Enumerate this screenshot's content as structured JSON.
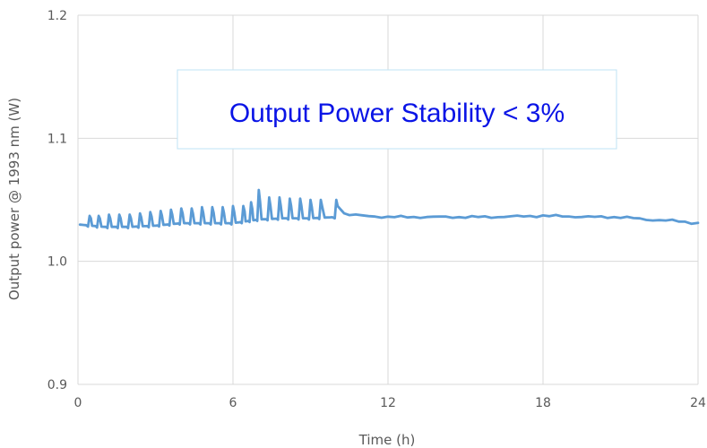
{
  "chart_data": {
    "type": "line",
    "title": "",
    "xlabel": "Time (h)",
    "ylabel": "Output power @ 1993 nm (W)",
    "xlim": [
      0,
      24
    ],
    "ylim": [
      0.9,
      1.2
    ],
    "x_ticks": [
      "0",
      "6",
      "12",
      "18",
      "24"
    ],
    "y_ticks": [
      "0.9",
      "1.0",
      "1.1",
      "1.2"
    ],
    "grid": true,
    "legend": "none",
    "annotation": "Output Power Stability < 3%",
    "series": [
      {
        "color": "#5b9bd5",
        "baseline": [
          [
            0.0,
            1.034
          ],
          [
            1.0,
            1.032
          ],
          [
            2.0,
            1.032
          ],
          [
            3.0,
            1.033
          ],
          [
            4.0,
            1.035
          ],
          [
            5.0,
            1.035
          ],
          [
            6.0,
            1.035
          ],
          [
            7.0,
            1.038
          ],
          [
            8.0,
            1.039
          ],
          [
            9.0,
            1.039
          ],
          [
            10.0,
            1.04
          ],
          [
            10.5,
            1.038
          ],
          [
            11.0,
            1.037
          ],
          [
            12.0,
            1.036
          ],
          [
            14.0,
            1.036
          ],
          [
            16.0,
            1.036
          ],
          [
            18.0,
            1.037
          ],
          [
            20.0,
            1.036
          ],
          [
            21.0,
            1.036
          ],
          [
            22.0,
            1.034
          ],
          [
            23.0,
            1.033
          ],
          [
            24.0,
            1.031
          ]
        ],
        "oscillation_peaks": [
          [
            0.45,
            1.037
          ],
          [
            0.8,
            1.037
          ],
          [
            1.2,
            1.038
          ],
          [
            1.6,
            1.038
          ],
          [
            2.0,
            1.038
          ],
          [
            2.4,
            1.039
          ],
          [
            2.8,
            1.04
          ],
          [
            3.2,
            1.041
          ],
          [
            3.6,
            1.042
          ],
          [
            4.0,
            1.043
          ],
          [
            4.4,
            1.043
          ],
          [
            4.8,
            1.044
          ],
          [
            5.2,
            1.044
          ],
          [
            5.6,
            1.044
          ],
          [
            6.0,
            1.045
          ],
          [
            6.4,
            1.045
          ],
          [
            6.7,
            1.048
          ],
          [
            7.0,
            1.058
          ],
          [
            7.4,
            1.052
          ],
          [
            7.8,
            1.052
          ],
          [
            8.2,
            1.051
          ],
          [
            8.6,
            1.051
          ],
          [
            9.0,
            1.05
          ],
          [
            9.4,
            1.05
          ],
          [
            10.0,
            1.05
          ]
        ]
      }
    ]
  }
}
